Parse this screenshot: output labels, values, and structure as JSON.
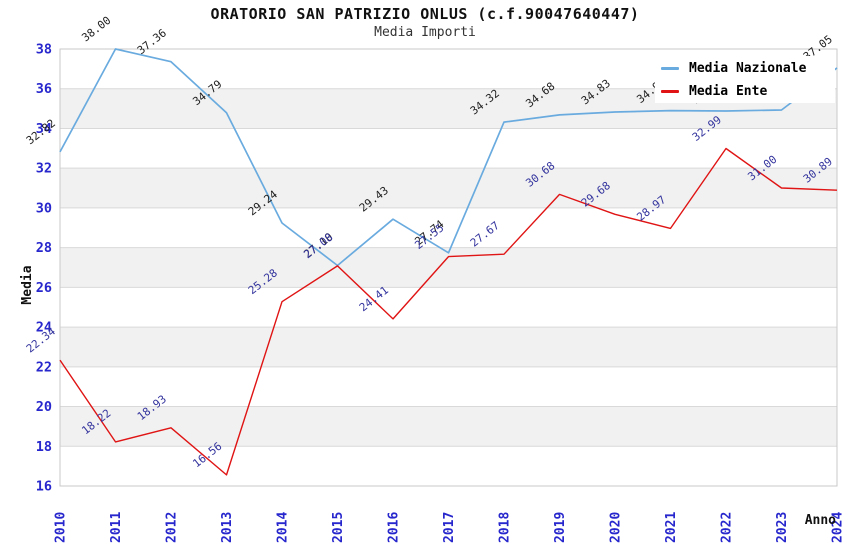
{
  "header": {
    "title": "ORATORIO SAN PATRIZIO ONLUS (c.f.90047640447)",
    "subtitle": "Media Importi"
  },
  "legend": {
    "position": "top-right-overlay",
    "items": [
      {
        "label": "Media Nazionale",
        "color": "#6aabdf"
      },
      {
        "label": "Media Ente",
        "color": "#e01414"
      }
    ]
  },
  "axes": {
    "y_title": "Media",
    "x_title": "Anno",
    "tick_label_color": "#2727cd",
    "y_ticks": [
      38,
      36,
      34,
      32,
      30,
      28,
      26,
      24,
      22,
      20,
      18,
      16
    ],
    "x_ticks": [
      "2010",
      "2011",
      "2012",
      "2013",
      "2014",
      "2015",
      "2016",
      "2017",
      "2018",
      "2019",
      "2020",
      "2021",
      "2022",
      "2023",
      "2024"
    ]
  },
  "chart_data": {
    "type": "line",
    "title": "ORATORIO SAN PATRIZIO ONLUS (c.f.90047640447)",
    "subtitle": "Media Importi",
    "xlabel": "Anno",
    "ylabel": "Media",
    "x": [
      2010,
      2011,
      2012,
      2013,
      2014,
      2015,
      2016,
      2017,
      2018,
      2019,
      2020,
      2021,
      2022,
      2023,
      2024
    ],
    "ylim": [
      16,
      38
    ],
    "y_tick_step": 2,
    "grid": "horizontal gridlines with alternating light-gray bands",
    "legend_position": "top-right overlay inside plot",
    "series": [
      {
        "name": "Media Nazionale",
        "color": "#6aabdf",
        "label_color": "#1f1f1f",
        "values": [
          32.82,
          38.0,
          37.36,
          34.79,
          29.24,
          27.1,
          29.43,
          27.74,
          34.32,
          34.68,
          34.83,
          34.9,
          34.88,
          34.93,
          37.05
        ],
        "labels": [
          "32.82",
          "38.00",
          "37.36",
          "34.79",
          "29.24",
          "27.10",
          "29.43",
          "27.74",
          "34.32",
          "34.68",
          "34.83",
          "34.90",
          "34.88",
          "34.93",
          "37.05"
        ],
        "note_labels_2021_2023": "hidden behind legend box"
      },
      {
        "name": "Media Ente",
        "color": "#e01414",
        "label_color": "#34349e",
        "values": [
          22.34,
          18.22,
          18.93,
          16.56,
          25.28,
          27.08,
          24.41,
          27.55,
          27.67,
          30.68,
          29.68,
          28.97,
          32.99,
          31.0,
          30.89
        ],
        "labels": [
          "22.34",
          "18.22",
          "18.93",
          "16.56",
          "25.28",
          "27.08",
          "24.41",
          "27.55",
          "27.67",
          "30.68",
          "29.68",
          "28.97",
          "32.99",
          "31.00",
          "30.89"
        ]
      }
    ],
    "style": {
      "band_fill": "#f1f1f1",
      "grid_color": "#d9d9d9",
      "border_color": "#c9c9c9",
      "data_label_rotation_deg": -38
    }
  }
}
